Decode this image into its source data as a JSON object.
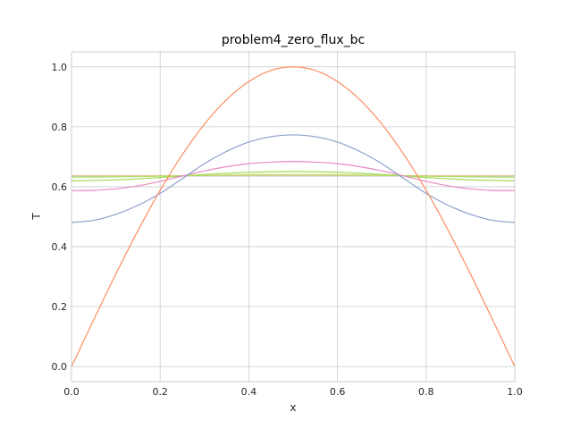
{
  "chart_data": {
    "type": "line",
    "title": "problem4_zero_flux_bc",
    "xlabel": "x",
    "ylabel": "T",
    "xlim": [
      0,
      1
    ],
    "ylim": [
      -0.05,
      1.05
    ],
    "xticks": [
      0.0,
      0.2,
      0.4,
      0.6,
      0.8,
      1.0
    ],
    "xtick_labels": [
      "0.0",
      "0.2",
      "0.4",
      "0.6",
      "0.8",
      "1.0"
    ],
    "yticks": [
      0.0,
      0.2,
      0.4,
      0.6,
      0.8,
      1.0
    ],
    "ytick_labels": [
      "0.0",
      "0.2",
      "0.4",
      "0.6",
      "0.8",
      "1.0"
    ],
    "grid": true,
    "series": [
      {
        "color": "#fc8d62",
        "x": [
          0.0,
          0.05,
          0.1,
          0.15,
          0.2,
          0.25,
          0.3,
          0.35,
          0.4,
          0.45,
          0.5,
          0.55,
          0.6,
          0.65,
          0.7,
          0.75,
          0.8,
          0.85,
          0.9,
          0.95,
          1.0
        ],
        "values": [
          0.0,
          0.156,
          0.309,
          0.454,
          0.588,
          0.707,
          0.809,
          0.891,
          0.951,
          0.988,
          1.0,
          0.988,
          0.951,
          0.891,
          0.809,
          0.707,
          0.588,
          0.454,
          0.309,
          0.156,
          0.0
        ]
      },
      {
        "color": "#8da0cb",
        "x": [
          0.0,
          0.05,
          0.1,
          0.15,
          0.2,
          0.25,
          0.3,
          0.35,
          0.4,
          0.45,
          0.5,
          0.55,
          0.6,
          0.65,
          0.7,
          0.75,
          0.8,
          0.85,
          0.9,
          0.95,
          1.0
        ],
        "values": [
          0.481,
          0.488,
          0.508,
          0.538,
          0.578,
          0.627,
          0.677,
          0.718,
          0.749,
          0.767,
          0.773,
          0.767,
          0.749,
          0.718,
          0.677,
          0.627,
          0.578,
          0.538,
          0.508,
          0.488,
          0.481
        ]
      },
      {
        "color": "#e78ac3",
        "x": [
          0.0,
          0.05,
          0.1,
          0.15,
          0.2,
          0.25,
          0.3,
          0.35,
          0.4,
          0.45,
          0.5,
          0.55,
          0.6,
          0.65,
          0.7,
          0.75,
          0.8,
          0.85,
          0.9,
          0.95,
          1.0
        ],
        "values": [
          0.587,
          0.588,
          0.593,
          0.603,
          0.618,
          0.636,
          0.653,
          0.667,
          0.677,
          0.682,
          0.684,
          0.682,
          0.677,
          0.667,
          0.653,
          0.636,
          0.618,
          0.603,
          0.593,
          0.588,
          0.587
        ]
      },
      {
        "color": "#a6d854",
        "x": [
          0.0,
          0.1,
          0.2,
          0.3,
          0.4,
          0.5,
          0.6,
          0.7,
          0.8,
          0.9,
          1.0
        ],
        "values": [
          0.62,
          0.623,
          0.631,
          0.641,
          0.648,
          0.651,
          0.648,
          0.641,
          0.631,
          0.623,
          0.62
        ]
      },
      {
        "color": "#b3de69",
        "x": [
          0.0,
          0.1,
          0.2,
          0.3,
          0.4,
          0.5,
          0.6,
          0.7,
          0.8,
          0.9,
          1.0
        ],
        "values": [
          0.632,
          0.633,
          0.635,
          0.638,
          0.64,
          0.641,
          0.64,
          0.638,
          0.635,
          0.633,
          0.632
        ]
      },
      {
        "color": "#e5c494",
        "x": [
          0.0,
          0.5,
          1.0
        ],
        "values": [
          0.637,
          0.637,
          0.637
        ]
      },
      {
        "color": "#b3b3b3",
        "x": [
          0.0,
          0.5,
          1.0
        ],
        "values": [
          0.6365,
          0.6365,
          0.6365
        ]
      },
      {
        "color": "#66c2a5",
        "x": [
          0.0,
          0.5,
          1.0
        ],
        "values": [
          0.6366,
          0.6366,
          0.6366
        ]
      }
    ]
  }
}
